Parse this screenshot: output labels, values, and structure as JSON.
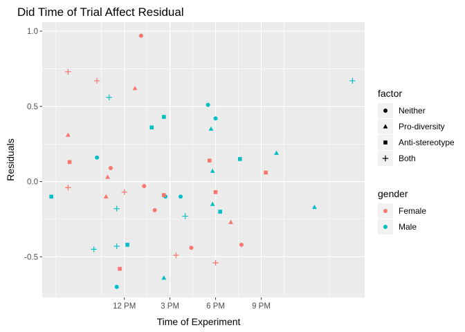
{
  "chart_data": {
    "type": "scatter",
    "title": "Did Time of Trial Affect Residual",
    "xlabel": "Time of Experiment",
    "ylabel": "Residuals",
    "x_unit": "hours since midnight",
    "xlim": [
      6.6,
      27.8
    ],
    "ylim": [
      -0.77,
      1.06
    ],
    "x_ticks": [
      {
        "value": 12,
        "label": "12 PM"
      },
      {
        "value": 15,
        "label": "3 PM"
      },
      {
        "value": 18,
        "label": "6 PM"
      },
      {
        "value": 21,
        "label": "9 PM"
      }
    ],
    "y_ticks": [
      {
        "value": -0.5,
        "label": "-0.5"
      },
      {
        "value": 0.0,
        "label": "0.0"
      },
      {
        "value": 0.5,
        "label": "0.5"
      },
      {
        "value": 1.0,
        "label": "1.0"
      }
    ],
    "grid": true,
    "legend_placement": "right",
    "colors": {
      "Female": "#f8766d",
      "Male": "#00bfc4"
    },
    "legends": [
      {
        "title": "factor",
        "entries": [
          {
            "label": "Neither",
            "shape": "circle"
          },
          {
            "label": "Pro-diversity",
            "shape": "triangle"
          },
          {
            "label": "Anti-stereotype",
            "shape": "square"
          },
          {
            "label": "Both",
            "shape": "plus"
          }
        ]
      },
      {
        "title": "gender",
        "entries": [
          {
            "label": "Female",
            "shape": "circle"
          },
          {
            "label": "Male",
            "shape": "circle"
          }
        ]
      }
    ],
    "points": [
      {
        "x": 13.1,
        "y": 0.97,
        "factor": "Neither",
        "gender": "Female"
      },
      {
        "x": 11.1,
        "y": 0.09,
        "factor": "Neither",
        "gender": "Female"
      },
      {
        "x": 13.3,
        "y": -0.03,
        "factor": "Neither",
        "gender": "Female"
      },
      {
        "x": 14.0,
        "y": -0.19,
        "factor": "Neither",
        "gender": "Female"
      },
      {
        "x": 16.4,
        "y": -0.44,
        "factor": "Neither",
        "gender": "Female"
      },
      {
        "x": 19.7,
        "y": -0.42,
        "factor": "Neither",
        "gender": "Female"
      },
      {
        "x": 10.2,
        "y": 0.16,
        "factor": "Neither",
        "gender": "Male"
      },
      {
        "x": 17.5,
        "y": 0.51,
        "factor": "Neither",
        "gender": "Male"
      },
      {
        "x": 18.0,
        "y": 0.42,
        "factor": "Neither",
        "gender": "Male"
      },
      {
        "x": 14.7,
        "y": -0.1,
        "factor": "Neither",
        "gender": "Male"
      },
      {
        "x": 15.7,
        "y": -0.1,
        "factor": "Neither",
        "gender": "Male"
      },
      {
        "x": 11.5,
        "y": -0.7,
        "factor": "Neither",
        "gender": "Male"
      },
      {
        "x": 8.3,
        "y": 0.31,
        "factor": "Pro-diversity",
        "gender": "Female"
      },
      {
        "x": 12.7,
        "y": 0.62,
        "factor": "Pro-diversity",
        "gender": "Female"
      },
      {
        "x": 10.9,
        "y": 0.03,
        "factor": "Pro-diversity",
        "gender": "Female"
      },
      {
        "x": 10.8,
        "y": -0.1,
        "factor": "Pro-diversity",
        "gender": "Female"
      },
      {
        "x": 19.0,
        "y": -0.27,
        "factor": "Pro-diversity",
        "gender": "Female"
      },
      {
        "x": 17.7,
        "y": 0.35,
        "factor": "Pro-diversity",
        "gender": "Male"
      },
      {
        "x": 22.0,
        "y": 0.19,
        "factor": "Pro-diversity",
        "gender": "Male"
      },
      {
        "x": 17.8,
        "y": 0.07,
        "factor": "Pro-diversity",
        "gender": "Male"
      },
      {
        "x": 17.8,
        "y": -0.15,
        "factor": "Pro-diversity",
        "gender": "Male"
      },
      {
        "x": 24.5,
        "y": -0.17,
        "factor": "Pro-diversity",
        "gender": "Male"
      },
      {
        "x": 14.6,
        "y": -0.64,
        "factor": "Pro-diversity",
        "gender": "Male"
      },
      {
        "x": 8.4,
        "y": 0.13,
        "factor": "Anti-stereotype",
        "gender": "Female"
      },
      {
        "x": 17.6,
        "y": 0.14,
        "factor": "Anti-stereotype",
        "gender": "Female"
      },
      {
        "x": 21.3,
        "y": 0.06,
        "factor": "Anti-stereotype",
        "gender": "Female"
      },
      {
        "x": 18.0,
        "y": -0.07,
        "factor": "Anti-stereotype",
        "gender": "Female"
      },
      {
        "x": 14.6,
        "y": -0.09,
        "factor": "Anti-stereotype",
        "gender": "Female"
      },
      {
        "x": 11.7,
        "y": -0.58,
        "factor": "Anti-stereotype",
        "gender": "Female"
      },
      {
        "x": 14.6,
        "y": 0.43,
        "factor": "Anti-stereotype",
        "gender": "Male"
      },
      {
        "x": 13.8,
        "y": 0.36,
        "factor": "Anti-stereotype",
        "gender": "Male"
      },
      {
        "x": 19.6,
        "y": 0.15,
        "factor": "Anti-stereotype",
        "gender": "Male"
      },
      {
        "x": 18.3,
        "y": -0.2,
        "factor": "Anti-stereotype",
        "gender": "Male"
      },
      {
        "x": 7.2,
        "y": -0.1,
        "factor": "Anti-stereotype",
        "gender": "Male"
      },
      {
        "x": 12.2,
        "y": -0.42,
        "factor": "Anti-stereotype",
        "gender": "Male"
      },
      {
        "x": 8.3,
        "y": 0.73,
        "factor": "Both",
        "gender": "Female"
      },
      {
        "x": 10.2,
        "y": 0.67,
        "factor": "Both",
        "gender": "Female"
      },
      {
        "x": 8.3,
        "y": -0.04,
        "factor": "Both",
        "gender": "Female"
      },
      {
        "x": 12.0,
        "y": -0.07,
        "factor": "Both",
        "gender": "Female"
      },
      {
        "x": 15.4,
        "y": -0.49,
        "factor": "Both",
        "gender": "Female"
      },
      {
        "x": 18.0,
        "y": -0.54,
        "factor": "Both",
        "gender": "Female"
      },
      {
        "x": 11.0,
        "y": 0.56,
        "factor": "Both",
        "gender": "Male"
      },
      {
        "x": 27.0,
        "y": 0.67,
        "factor": "Both",
        "gender": "Male"
      },
      {
        "x": 11.5,
        "y": -0.18,
        "factor": "Both",
        "gender": "Male"
      },
      {
        "x": 16.0,
        "y": -0.23,
        "factor": "Both",
        "gender": "Male"
      },
      {
        "x": 11.5,
        "y": -0.43,
        "factor": "Both",
        "gender": "Male"
      },
      {
        "x": 10.0,
        "y": -0.45,
        "factor": "Both",
        "gender": "Male"
      }
    ]
  }
}
